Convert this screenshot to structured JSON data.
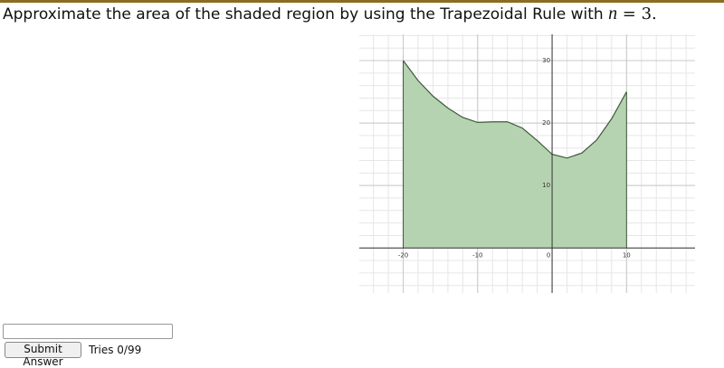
{
  "question": {
    "text": "Approximate the area of the shaded region by using the Trapezoidal Rule with",
    "variable": "n",
    "relation": "= 3."
  },
  "chart_data": {
    "type": "area",
    "x": [
      -20,
      -18,
      -16,
      -14,
      -12,
      -10,
      -8,
      -6,
      -4,
      -2,
      0,
      2,
      4,
      6,
      8,
      10
    ],
    "values": [
      30,
      26.8,
      24.3,
      22.4,
      20.9,
      20.1,
      20.2,
      20.2,
      19.2,
      17.2,
      15,
      14.4,
      15.2,
      17.3,
      20.7,
      25
    ],
    "xlim": [
      -25.9,
      19.2
    ],
    "ylim": [
      -7.2,
      34.2
    ],
    "xticks": [
      -20,
      -10,
      0,
      10
    ],
    "yticks": [
      10,
      20,
      30
    ],
    "grid": true,
    "minor_step": 2,
    "color": "#b6d3b1",
    "line_color": "#3d5a3a"
  },
  "form": {
    "button": "Submit Answer",
    "tries": "Tries 0/99"
  }
}
